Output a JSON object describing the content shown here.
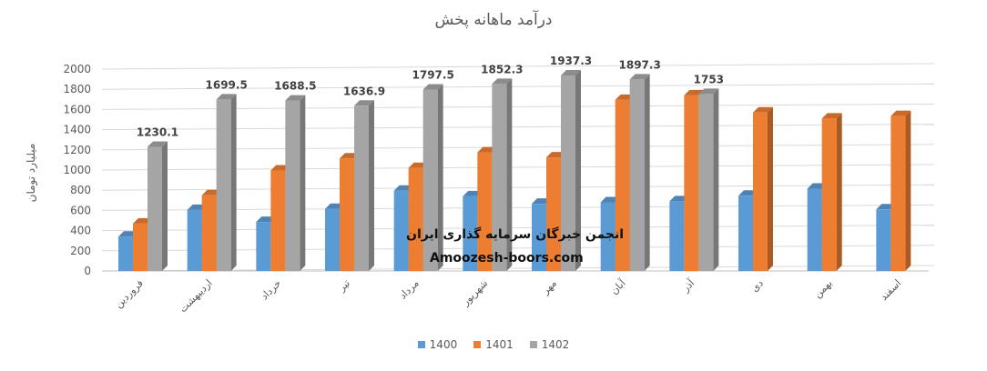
{
  "chart_data": {
    "type": "bar",
    "title": "درآمد ماهانه پخش",
    "ylabel": "میلیارد تومان",
    "xlabel": "",
    "ylim": [
      0,
      2000
    ],
    "yticks": [
      0,
      200,
      400,
      600,
      800,
      1000,
      1200,
      1400,
      1600,
      1800,
      2000
    ],
    "categories": [
      "فروردین",
      "اردیبهشت",
      "خرداد",
      "تیر",
      "مرداد",
      "شهریور",
      "مهر",
      "آبان",
      "آذر",
      "دی",
      "بهمن",
      "اسفند"
    ],
    "series": [
      {
        "name": "1400",
        "color": "#5B9BD5",
        "values": [
          340,
          605,
          485,
          615,
          795,
          740,
          665,
          680,
          690,
          745,
          815,
          610
        ]
      },
      {
        "name": "1401",
        "color": "#ED7D31",
        "values": [
          470,
          750,
          995,
          1115,
          1020,
          1175,
          1125,
          1695,
          1740,
          1570,
          1510,
          1535
        ]
      },
      {
        "name": "1402",
        "color": "#A5A5A5",
        "values": [
          1230.1,
          1699.5,
          1688.5,
          1636.9,
          1797.5,
          1852.3,
          1937.3,
          1897.3,
          1753,
          null,
          null,
          null
        ]
      }
    ],
    "data_labels": [
      "1230.1",
      "1699.5",
      "1688.5",
      "1636.9",
      "1797.5",
      "1852.3",
      "1937.3",
      "1897.3",
      "1753"
    ],
    "grid": true,
    "legend_position": "bottom"
  },
  "watermark": {
    "line1": "انجمن خبرگان سرمایه گذاری ایران",
    "line2": "Amoozesh-boors.com"
  }
}
